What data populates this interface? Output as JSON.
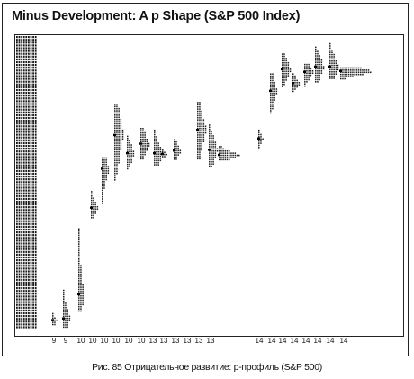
{
  "title": "Minus Development: A p Shape (S&P 500 Index)",
  "caption": "Рис. 85 Отрицательное развитие: р-профиль (S&P 500)",
  "chart_data": {
    "type": "market-profile",
    "title": "Minus Development: A p Shape (S&P 500 Index)",
    "x_day_labels": [
      "9",
      "9",
      "10",
      "10",
      "10",
      "10",
      "10",
      "10",
      "13",
      "13",
      "13",
      "13",
      "13",
      "13",
      "14",
      "14",
      "14",
      "14",
      "14",
      "14",
      "14",
      "14"
    ],
    "grid": false,
    "legend": "none",
    "profiles": [
      {
        "day": "9",
        "low": 4,
        "high": 18,
        "poc": 10,
        "width": 3
      },
      {
        "day": "9",
        "low": 2,
        "high": 45,
        "poc": 12,
        "width": 4
      },
      {
        "day": "10",
        "low": 20,
        "high": 116,
        "poc": 40,
        "width": 3
      },
      {
        "day": "10",
        "low": 128,
        "high": 159,
        "poc": 140,
        "width": 4
      },
      {
        "day": "10",
        "low": 145,
        "high": 198,
        "poc": 185,
        "width": 4
      },
      {
        "day": "10",
        "low": 172,
        "high": 260,
        "poc": 224,
        "width": 5
      },
      {
        "day": "10",
        "low": 185,
        "high": 223,
        "poc": 203,
        "width": 4
      },
      {
        "day": "10",
        "low": 195,
        "high": 232,
        "poc": 214,
        "width": 5
      },
      {
        "day": "13",
        "low": 190,
        "high": 230,
        "poc": 203,
        "width": 5
      },
      {
        "day": "13",
        "low": 198,
        "high": 207,
        "poc": 202,
        "width": 3
      },
      {
        "day": "13",
        "low": 195,
        "high": 219,
        "poc": 206,
        "width": 4
      },
      {
        "day": "13",
        "low": 195,
        "high": 262,
        "poc": 230,
        "width": 5
      },
      {
        "day": "13",
        "low": 188,
        "high": 236,
        "poc": 207,
        "width": 5
      },
      {
        "day": "13",
        "low": 194,
        "high": 211,
        "poc": 201,
        "width": 11
      },
      {
        "day": "14",
        "low": 210,
        "high": 230,
        "poc": 220,
        "width": 3
      },
      {
        "day": "14",
        "low": 250,
        "high": 295,
        "poc": 275,
        "width": 4
      },
      {
        "day": "14",
        "low": 280,
        "high": 318,
        "poc": 300,
        "width": 5
      },
      {
        "day": "14",
        "low": 275,
        "high": 295,
        "poc": 284,
        "width": 4
      },
      {
        "day": "14",
        "low": 280,
        "high": 306,
        "poc": 297,
        "width": 5
      },
      {
        "day": "14",
        "low": 285,
        "high": 326,
        "poc": 303,
        "width": 5
      },
      {
        "day": "14",
        "low": 288,
        "high": 330,
        "poc": 303,
        "width": 5
      },
      {
        "day": "14",
        "low": 288,
        "high": 302,
        "poc": 298,
        "width": 18
      }
    ],
    "y_range": [
      0,
      336
    ]
  }
}
